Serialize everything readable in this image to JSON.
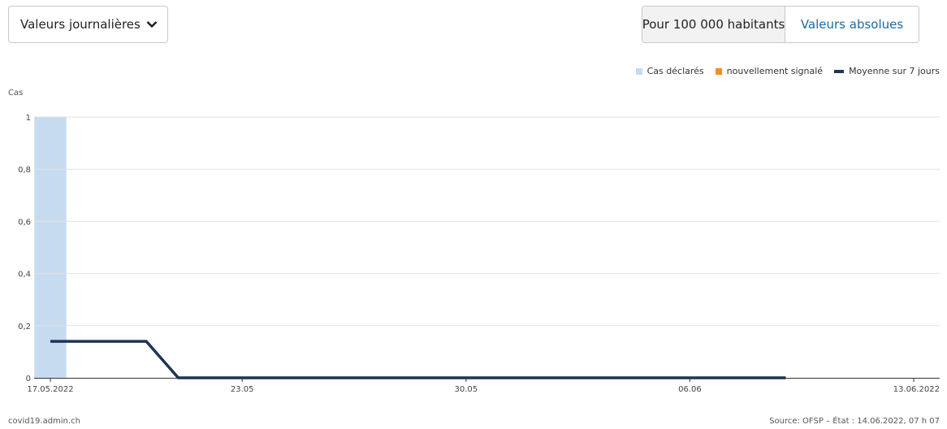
{
  "controls": {
    "dropdown_value": "Valeurs journalières",
    "toggle_active": "Pour 100 000 habitants",
    "toggle_inactive": "Valeurs absolues"
  },
  "legend": {
    "items": [
      {
        "label": "Cas déclarés",
        "color": "#c6dbf0",
        "kind": "bar"
      },
      {
        "label": "nouvellement signalé",
        "color": "#f28c28",
        "kind": "bar"
      },
      {
        "label": "Moyenne sur 7 jours",
        "color": "#1c3557",
        "kind": "line"
      }
    ]
  },
  "footer": {
    "left": "covid19.admin.ch",
    "right": "Source: OFSP – État : 14.06.2022, 07 h 07"
  },
  "chart_data": {
    "type": "bar",
    "ylabel": "Cas",
    "ylim": [
      0,
      1
    ],
    "yticks": [
      "0",
      "0,2",
      "0,4",
      "0,6",
      "0,8",
      "1"
    ],
    "ytick_values": [
      0,
      0.2,
      0.4,
      0.6,
      0.8,
      1
    ],
    "xlim": [
      "2022-05-17",
      "2022-06-13"
    ],
    "xticks": [
      {
        "date": "2022-05-17",
        "label": "17.05.2022"
      },
      {
        "date": "2022-05-23",
        "label": "23.05"
      },
      {
        "date": "2022-05-30",
        "label": "30.05"
      },
      {
        "date": "2022-06-06",
        "label": "06.06"
      },
      {
        "date": "2022-06-13",
        "label": "13.06.2022"
      }
    ],
    "grid": true,
    "legend_position": "top-right",
    "series": [
      {
        "name": "Cas déclarés",
        "type": "bar",
        "color": "#c6dbf0",
        "points": [
          {
            "date": "2022-05-17",
            "value": 1
          }
        ]
      },
      {
        "name": "nouvellement signalé",
        "type": "bar",
        "color": "#f28c28",
        "points": []
      },
      {
        "name": "Moyenne sur 7 jours",
        "type": "line",
        "color": "#1c3557",
        "points": [
          {
            "date": "2022-05-17",
            "value": 0.14
          },
          {
            "date": "2022-05-18",
            "value": 0.14
          },
          {
            "date": "2022-05-19",
            "value": 0.14
          },
          {
            "date": "2022-05-20",
            "value": 0.14
          },
          {
            "date": "2022-05-21",
            "value": 0
          },
          {
            "date": "2022-05-22",
            "value": 0
          },
          {
            "date": "2022-05-23",
            "value": 0
          },
          {
            "date": "2022-05-24",
            "value": 0
          },
          {
            "date": "2022-05-25",
            "value": 0
          },
          {
            "date": "2022-05-26",
            "value": 0
          },
          {
            "date": "2022-05-27",
            "value": 0
          },
          {
            "date": "2022-05-28",
            "value": 0
          },
          {
            "date": "2022-05-29",
            "value": 0
          },
          {
            "date": "2022-05-30",
            "value": 0
          },
          {
            "date": "2022-05-31",
            "value": 0
          },
          {
            "date": "2022-06-01",
            "value": 0
          },
          {
            "date": "2022-06-02",
            "value": 0
          },
          {
            "date": "2022-06-03",
            "value": 0
          },
          {
            "date": "2022-06-04",
            "value": 0
          },
          {
            "date": "2022-06-05",
            "value": 0
          },
          {
            "date": "2022-06-06",
            "value": 0
          },
          {
            "date": "2022-06-07",
            "value": 0
          },
          {
            "date": "2022-06-08",
            "value": 0
          },
          {
            "date": "2022-06-09",
            "value": 0
          }
        ]
      }
    ]
  }
}
